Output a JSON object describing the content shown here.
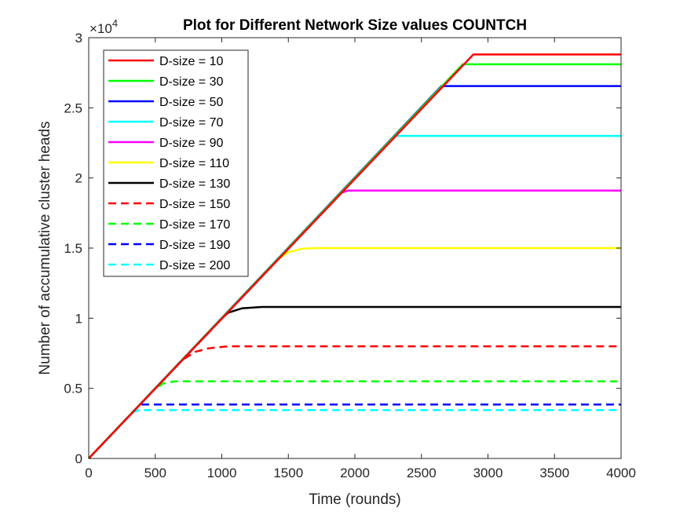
{
  "chart_data": {
    "type": "line",
    "title": "Plot for Different Network Size values COUNTCH",
    "xlabel": "Time (rounds)",
    "ylabel": "Number of accumulative cluster heads",
    "y_exponent_label": "×10",
    "y_exponent_power": "4",
    "xlim": [
      0,
      4000
    ],
    "ylim": [
      0,
      3
    ],
    "xticks": [
      "0",
      "500",
      "1000",
      "1500",
      "2000",
      "2500",
      "3000",
      "3500",
      "4000"
    ],
    "yticks": [
      "0",
      "0.5",
      "1",
      "1.5",
      "2",
      "2.5",
      "3"
    ],
    "legend_position": "top-left",
    "series": [
      {
        "name": "D-size = 10",
        "color": "#ff0000",
        "dash": "solid",
        "points": [
          [
            0,
            0
          ],
          [
            2890,
            2.88
          ],
          [
            4000,
            2.88
          ]
        ]
      },
      {
        "name": "D-size = 30",
        "color": "#00ff00",
        "dash": "solid",
        "points": [
          [
            0,
            0
          ],
          [
            2810,
            2.81
          ],
          [
            4000,
            2.81
          ]
        ]
      },
      {
        "name": "D-size = 50",
        "color": "#0000ff",
        "dash": "solid",
        "points": [
          [
            0,
            0
          ],
          [
            2650,
            2.655
          ],
          [
            4000,
            2.655
          ]
        ]
      },
      {
        "name": "D-size = 70",
        "color": "#00ffff",
        "dash": "solid",
        "points": [
          [
            0,
            0
          ],
          [
            2300,
            2.3
          ],
          [
            4000,
            2.3
          ]
        ]
      },
      {
        "name": "D-size = 90",
        "color": "#ff00ff",
        "dash": "solid",
        "points": [
          [
            0,
            0
          ],
          [
            1900,
            1.895
          ],
          [
            1950,
            1.91
          ],
          [
            4000,
            1.91
          ]
        ]
      },
      {
        "name": "D-size = 110",
        "color": "#ffff00",
        "dash": "solid",
        "points": [
          [
            0,
            0
          ],
          [
            1420,
            1.42
          ],
          [
            1500,
            1.47
          ],
          [
            1600,
            1.495
          ],
          [
            1700,
            1.5
          ],
          [
            4000,
            1.5
          ]
        ]
      },
      {
        "name": "D-size = 130",
        "color": "#000000",
        "dash": "solid",
        "points": [
          [
            0,
            0
          ],
          [
            1000,
            1.0
          ],
          [
            1050,
            1.04
          ],
          [
            1150,
            1.07
          ],
          [
            1300,
            1.08
          ],
          [
            4000,
            1.08
          ]
        ]
      },
      {
        "name": "D-size = 150",
        "color": "#ff0000",
        "dash": "dashed",
        "points": [
          [
            0,
            0
          ],
          [
            700,
            0.7
          ],
          [
            800,
            0.76
          ],
          [
            900,
            0.785
          ],
          [
            1050,
            0.8
          ],
          [
            4000,
            0.8
          ]
        ]
      },
      {
        "name": "D-size = 170",
        "color": "#00ff00",
        "dash": "dashed",
        "points": [
          [
            0,
            0
          ],
          [
            480,
            0.48
          ],
          [
            560,
            0.535
          ],
          [
            650,
            0.55
          ],
          [
            4000,
            0.55
          ]
        ]
      },
      {
        "name": "D-size = 190",
        "color": "#0000ff",
        "dash": "dashed",
        "points": [
          [
            0,
            0
          ],
          [
            370,
            0.37
          ],
          [
            400,
            0.385
          ],
          [
            4000,
            0.385
          ]
        ]
      },
      {
        "name": "D-size = 200",
        "color": "#00ffff",
        "dash": "dashed",
        "points": [
          [
            0,
            0
          ],
          [
            330,
            0.33
          ],
          [
            380,
            0.345
          ],
          [
            4000,
            0.345
          ]
        ]
      }
    ]
  }
}
